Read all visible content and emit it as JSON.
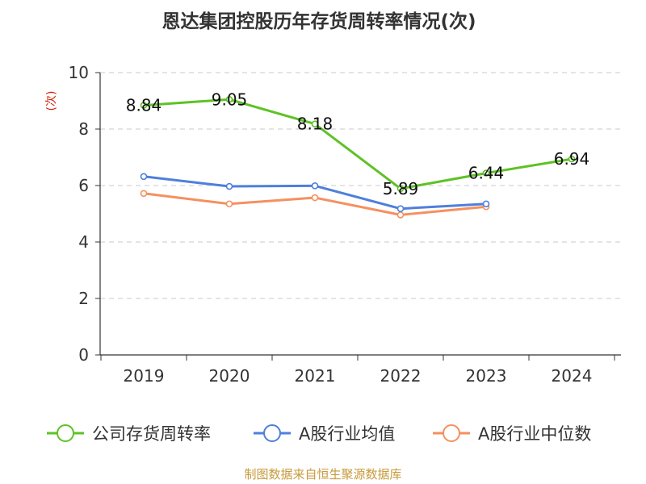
{
  "chart_data": {
    "type": "line",
    "title": "恩达集团控股历年存货周转率情况(次)",
    "ylabel": "(次)",
    "ylim": [
      0,
      10
    ],
    "yticks": [
      0,
      2,
      4,
      6,
      8,
      10
    ],
    "grid": true,
    "legend_position": "bottom",
    "categories": [
      "2019",
      "2020",
      "2021",
      "2022",
      "2023",
      "2024"
    ],
    "series": [
      {
        "name": "公司存货周转率",
        "color": "#5ec226",
        "values": [
          8.84,
          9.05,
          8.18,
          5.89,
          6.44,
          6.94
        ],
        "labels": [
          "8.84",
          "9.05",
          "8.18",
          "5.89",
          "6.44",
          "6.94"
        ]
      },
      {
        "name": "A股行业均值",
        "color": "#4e7fdc",
        "values": [
          6.32,
          5.97,
          5.99,
          5.18,
          5.35,
          null
        ]
      },
      {
        "name": "A股行业中位数",
        "color": "#f5905f",
        "values": [
          5.72,
          5.35,
          5.57,
          4.96,
          5.25,
          null
        ]
      }
    ],
    "ylabel_color": "#d81e06",
    "source": "制图数据来自恒生聚源数据库",
    "source_color": "#c79a3c"
  }
}
